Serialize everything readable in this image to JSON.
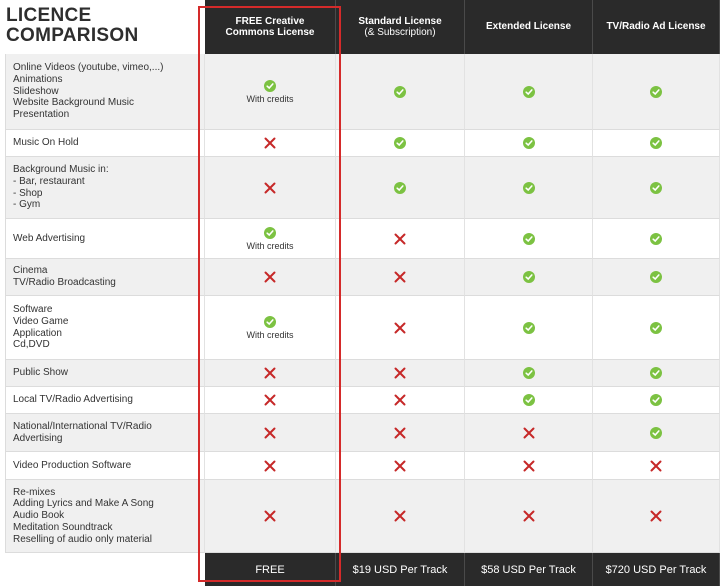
{
  "title_lines": [
    "LICENCE",
    "COMPARISON"
  ],
  "columns": [
    {
      "title": "FREE Creative",
      "subtitle": "Commons License",
      "sub_normal": false,
      "price": "FREE"
    },
    {
      "title": "Standard License",
      "subtitle": "(& Subscription)",
      "sub_normal": true,
      "price": "$19 USD Per Track"
    },
    {
      "title": "Extended License",
      "subtitle": "",
      "sub_normal": false,
      "price": "$58 USD Per Track"
    },
    {
      "title": "TV/Radio Ad License",
      "subtitle": "",
      "sub_normal": false,
      "price": "$720 USD Per Track"
    }
  ],
  "rows": [
    {
      "lines": [
        "Online Videos (youtube, vimeo,...)",
        "Animations",
        "Slideshow",
        "Website Background Music",
        "Presentation"
      ],
      "cells": [
        "check",
        "check",
        "check",
        "check"
      ],
      "notes": [
        "With credits",
        "",
        "",
        ""
      ]
    },
    {
      "lines": [
        "Music On Hold"
      ],
      "cells": [
        "cross",
        "check",
        "check",
        "check"
      ],
      "notes": [
        "",
        "",
        "",
        ""
      ]
    },
    {
      "lines": [
        "Background Music in:",
        "- Bar, restaurant",
        "- Shop",
        "- Gym"
      ],
      "cells": [
        "cross",
        "check",
        "check",
        "check"
      ],
      "notes": [
        "",
        "",
        "",
        ""
      ]
    },
    {
      "lines": [
        "Web Advertising"
      ],
      "cells": [
        "check",
        "cross",
        "check",
        "check"
      ],
      "notes": [
        "With credits",
        "",
        "",
        ""
      ]
    },
    {
      "lines": [
        "Cinema",
        "TV/Radio Broadcasting"
      ],
      "cells": [
        "cross",
        "cross",
        "check",
        "check"
      ],
      "notes": [
        "",
        "",
        "",
        ""
      ]
    },
    {
      "lines": [
        "Software",
        "Video Game",
        "Application",
        "Cd,DVD"
      ],
      "cells": [
        "check",
        "cross",
        "check",
        "check"
      ],
      "notes": [
        "With credits",
        "",
        "",
        ""
      ]
    },
    {
      "lines": [
        "Public Show"
      ],
      "cells": [
        "cross",
        "cross",
        "check",
        "check"
      ],
      "notes": [
        "",
        "",
        "",
        ""
      ]
    },
    {
      "lines": [
        "Local TV/Radio Advertising"
      ],
      "cells": [
        "cross",
        "cross",
        "check",
        "check"
      ],
      "notes": [
        "",
        "",
        "",
        ""
      ]
    },
    {
      "lines": [
        "National/International TV/Radio",
        "Advertising"
      ],
      "cells": [
        "cross",
        "cross",
        "cross",
        "check"
      ],
      "notes": [
        "",
        "",
        "",
        ""
      ]
    },
    {
      "lines": [
        "Video Production Software"
      ],
      "cells": [
        "cross",
        "cross",
        "cross",
        "cross"
      ],
      "notes": [
        "",
        "",
        "",
        ""
      ]
    },
    {
      "lines": [
        "Re-mixes",
        "Adding Lyrics and Make A Song",
        "Audio Book",
        "Meditation Soundtrack",
        "Reselling of audio only material"
      ],
      "cells": [
        "cross",
        "cross",
        "cross",
        "cross"
      ],
      "notes": [
        "",
        "",
        "",
        ""
      ]
    }
  ],
  "icons": {
    "check": "check-circle-icon",
    "cross": "red-cross-icon"
  },
  "colors": {
    "check": "#7cc242",
    "cross": "#c62828",
    "header_bg": "#2a2a2a",
    "highlight": "#d42a2a"
  }
}
